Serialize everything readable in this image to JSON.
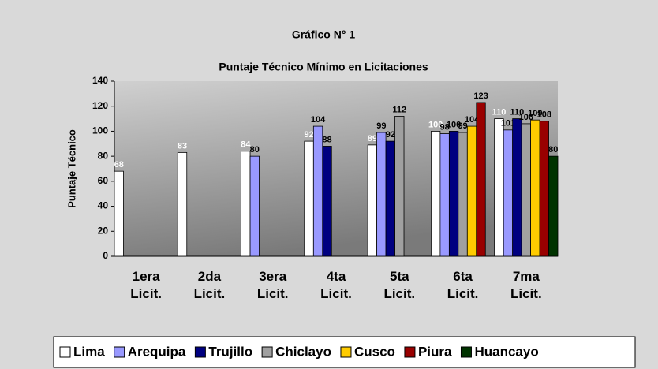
{
  "chart_data": {
    "type": "bar",
    "title": "Gráfico N° 1",
    "subtitle": "Puntaje Técnico Mínimo en Licitaciones",
    "y_label": "Puntaje Técnico",
    "categories": [
      "1era Licit.",
      "2da Licit.",
      "3era Licit.",
      "4ta Licit.",
      "5ta Licit.",
      "6ta Licit.",
      "7ma Licit."
    ],
    "series": [
      {
        "name": "Lima",
        "color": "#ffffff",
        "label_color": "#ffffff",
        "values": [
          68,
          83,
          84,
          92,
          89,
          100,
          110
        ]
      },
      {
        "name": "Arequipa",
        "color": "#9999ff",
        "label_color": "#000000",
        "values": [
          null,
          null,
          80,
          104,
          99,
          98,
          101
        ]
      },
      {
        "name": "Trujillo",
        "color": "#000080",
        "label_color": "#000000",
        "values": [
          null,
          null,
          null,
          88,
          92,
          100,
          110
        ]
      },
      {
        "name": "Chiclayo",
        "color": "#a0a0a0",
        "label_color": "#000000",
        "values": [
          null,
          null,
          null,
          null,
          112,
          99,
          106
        ]
      },
      {
        "name": "Cusco",
        "color": "#ffcc00",
        "label_color": "#000000",
        "values": [
          null,
          null,
          null,
          null,
          null,
          104,
          109
        ]
      },
      {
        "name": "Piura",
        "color": "#990000",
        "label_color": "#000000",
        "values": [
          null,
          null,
          null,
          null,
          null,
          123,
          108
        ]
      },
      {
        "name": "Huancayo",
        "color": "#003300",
        "label_color": "#000000",
        "values": [
          null,
          null,
          null,
          null,
          null,
          null,
          80
        ]
      }
    ],
    "ylim": [
      0,
      140
    ],
    "yticks": [
      0,
      20,
      40,
      60,
      80,
      100,
      120,
      140
    ]
  }
}
